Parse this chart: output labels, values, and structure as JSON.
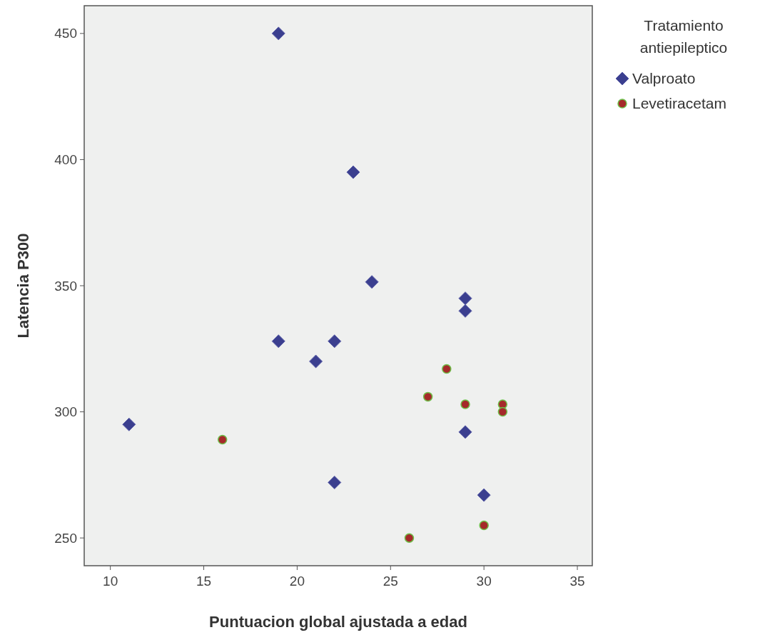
{
  "chart_data": {
    "type": "scatter",
    "xlabel": "Puntuacion global ajustada a edad",
    "ylabel": "Latencia P300",
    "legend_title": "Tratamiento antiepileptico",
    "xlim": [
      8.6,
      35.8
    ],
    "ylim": [
      239,
      461
    ],
    "xticks": [
      10,
      15,
      20,
      25,
      30,
      35
    ],
    "yticks": [
      250,
      300,
      350,
      400,
      450
    ],
    "grid": false,
    "legend": "right",
    "series": [
      {
        "name": "Valproato",
        "color": "#3b3f8f",
        "marker": "diamond",
        "x": [
          19,
          23,
          24,
          29,
          29,
          19,
          22,
          21,
          11,
          29,
          22,
          30
        ],
        "values": [
          450,
          395,
          351.5,
          345,
          340,
          328,
          328,
          320,
          295,
          292,
          272,
          267
        ]
      },
      {
        "name": "Levetiracetam",
        "color": "#a52a2a",
        "marker": "circle",
        "x": [
          16,
          28,
          27,
          29,
          31,
          31,
          26,
          30
        ],
        "values": [
          289,
          317,
          306,
          303,
          303,
          300,
          250,
          255
        ]
      }
    ]
  }
}
